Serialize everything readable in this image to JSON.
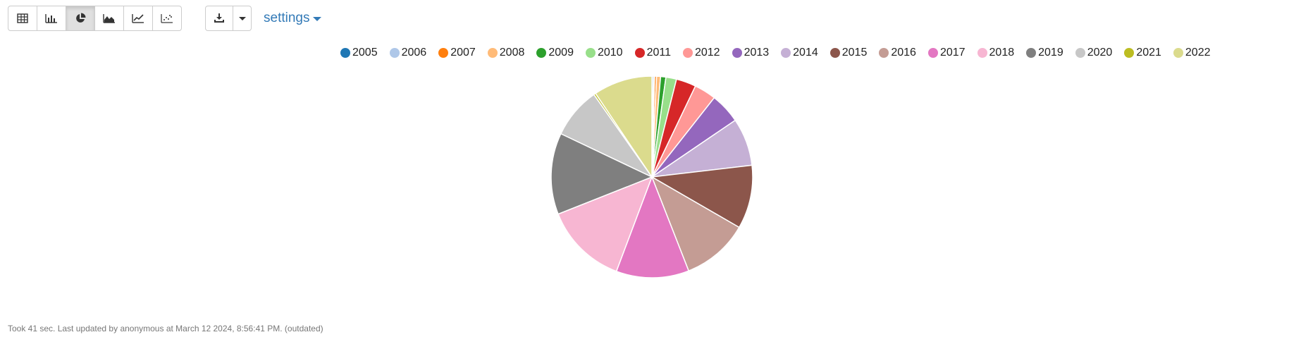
{
  "toolbar": {
    "views": [
      {
        "id": "table",
        "icon": "table-icon",
        "active": false
      },
      {
        "id": "bar",
        "icon": "bar-chart-icon",
        "active": false
      },
      {
        "id": "pie",
        "icon": "pie-chart-icon",
        "active": true
      },
      {
        "id": "area",
        "icon": "area-chart-icon",
        "active": false
      },
      {
        "id": "line",
        "icon": "line-chart-icon",
        "active": false
      },
      {
        "id": "scatter",
        "icon": "scatter-chart-icon",
        "active": false
      }
    ],
    "download_icon": "download-icon",
    "settings_label": "settings"
  },
  "footer": {
    "text": "Took 41 sec. Last updated by anonymous at March 12 2024, 8:56:41 PM. (outdated)"
  },
  "chart_data": {
    "type": "pie",
    "legend_position": "top",
    "categories": [
      "2005",
      "2006",
      "2007",
      "2008",
      "2009",
      "2010",
      "2011",
      "2012",
      "2013",
      "2014",
      "2015",
      "2016",
      "2017",
      "2018",
      "2019",
      "2020",
      "2021",
      "2022"
    ],
    "values": [
      0.2,
      0.2,
      0.3,
      0.6,
      0.8,
      1.6,
      3.0,
      3.3,
      4.6,
      7.2,
      9.6,
      10.1,
      11.0,
      12.5,
      12.3,
      7.7,
      0.3,
      8.9
    ],
    "colors": [
      "#1f77b4",
      "#aec7e8",
      "#ff7f0e",
      "#ffbb78",
      "#2ca02c",
      "#98df8a",
      "#d62728",
      "#ff9896",
      "#9467bd",
      "#c5b0d5",
      "#8c564b",
      "#c49c94",
      "#e377c2",
      "#f7b6d2",
      "#7f7f7f",
      "#c7c7c7",
      "#bcbd22",
      "#dbdb8d"
    ]
  }
}
